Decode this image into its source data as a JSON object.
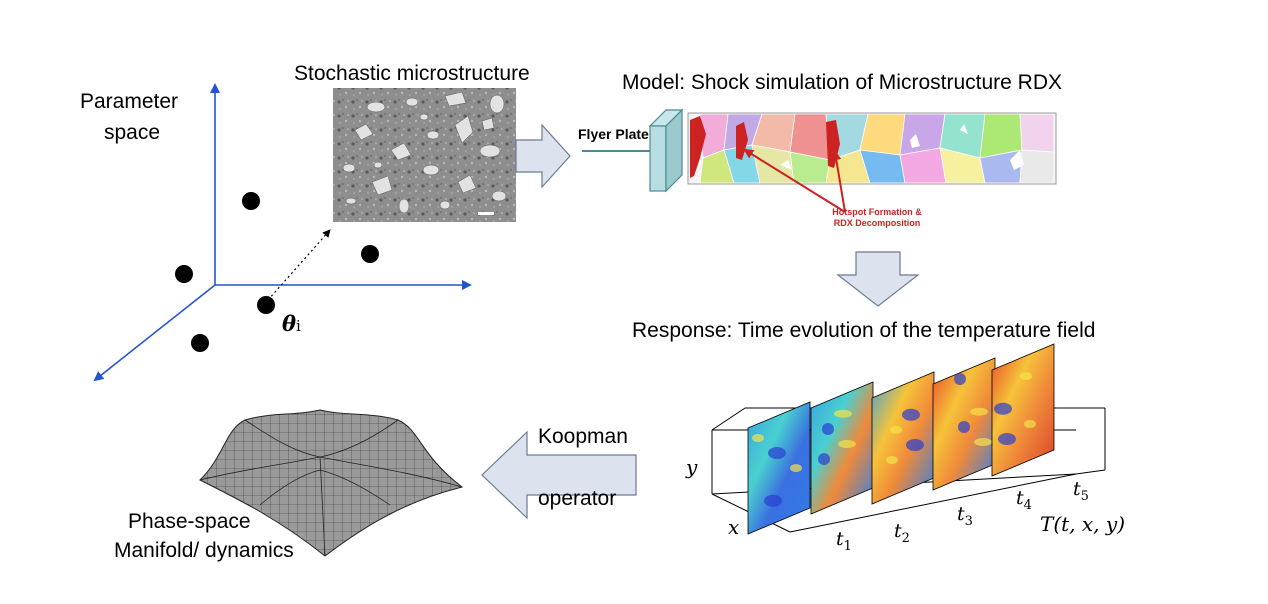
{
  "parameter_space": {
    "label_line1": "Parameter",
    "label_line2": "space",
    "theta_symbol": "θ",
    "theta_subscript": "i"
  },
  "microstructure": {
    "title": "Stochastic microstructure"
  },
  "model": {
    "title": "Model: Shock simulation of Microstructure RDX",
    "flyer_label": "Flyer Plate",
    "hotspot_line1": "Hotspot Formation &",
    "hotspot_line2": "RDX Decomposition"
  },
  "response": {
    "title": "Response: Time evolution of the temperature field",
    "y_label": "y",
    "x_label": "x",
    "times": [
      "t",
      "t",
      "t",
      "t",
      "t"
    ],
    "time_subscripts": [
      "1",
      "2",
      "3",
      "4",
      "5"
    ],
    "field_label": "T(t, x, y)"
  },
  "koopman": {
    "line1": "Koopman",
    "line2": "operator"
  },
  "manifold": {
    "line1": "Phase-space",
    "line2": "Manifold/ dynamics"
  },
  "colors": {
    "axis_blue": "#2255cc",
    "arrow_fill": "#dde3ee",
    "arrow_stroke": "#6e7a94",
    "hotspot_red": "#cc2222",
    "plate_fill": "#b7dde0"
  }
}
